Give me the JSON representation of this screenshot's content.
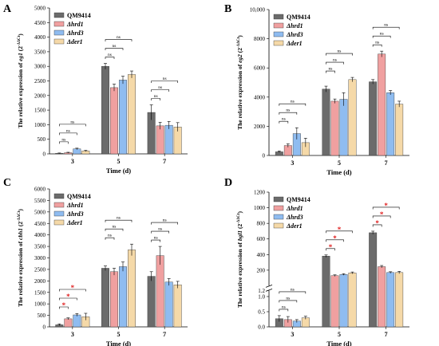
{
  "legend_labels": [
    "QM9414",
    "Δhrd1",
    "Δhrd3",
    "Δder1"
  ],
  "colors": {
    "QM9414": "#6b6b6b",
    "Δhrd1": "#f0a0a0",
    "Δhrd3": "#8fbcf0",
    "Δder1": "#f5d9a8",
    "significant": "#e02020",
    "not_significant": "#000000"
  },
  "chart_data": [
    {
      "panel": "A",
      "type": "bar",
      "ylabel": "The relative expression of eg1 (2^-ΔΔCt)",
      "ylabel_gene": "eg1",
      "xlabel": "Time (d)",
      "categories": [
        "3",
        "5",
        "7"
      ],
      "ylim": [
        0,
        5000
      ],
      "yticks": [
        0,
        500,
        1000,
        1500,
        2000,
        2500,
        3000,
        3500,
        4000,
        4500,
        5000
      ],
      "ytick_labels": [
        "0",
        "500",
        "1000",
        "1500",
        "2000",
        "2500",
        "3000",
        "3500",
        "4000",
        "4500",
        "5000"
      ],
      "series": [
        {
          "name": "QM9414",
          "values": [
            20,
            3000,
            1420
          ],
          "errors": [
            10,
            100,
            260
          ]
        },
        {
          "name": "Δhrd1",
          "values": [
            40,
            2270,
            960
          ],
          "errors": [
            15,
            120,
            120
          ]
        },
        {
          "name": "Δhrd3",
          "values": [
            170,
            2530,
            980
          ],
          "errors": [
            25,
            130,
            130
          ]
        },
        {
          "name": "Δder1",
          "values": [
            100,
            2720,
            920
          ],
          "errors": [
            20,
            120,
            150
          ]
        }
      ],
      "comparisons": [
        {
          "category": 0,
          "target": 1,
          "label": "ns",
          "significant": false
        },
        {
          "category": 0,
          "target": 2,
          "label": "ns",
          "significant": false
        },
        {
          "category": 0,
          "target": 3,
          "label": "ns",
          "significant": false
        },
        {
          "category": 1,
          "target": 1,
          "label": "ns",
          "significant": false
        },
        {
          "category": 1,
          "target": 2,
          "label": "ns",
          "significant": false
        },
        {
          "category": 1,
          "target": 3,
          "label": "ns",
          "significant": false
        },
        {
          "category": 2,
          "target": 1,
          "label": "ns",
          "significant": false
        },
        {
          "category": 2,
          "target": 2,
          "label": "ns",
          "significant": false
        },
        {
          "category": 2,
          "target": 3,
          "label": "ns",
          "significant": false
        }
      ]
    },
    {
      "panel": "B",
      "type": "bar",
      "ylabel": "The relative expression of eg2 (2^-ΔΔCt)",
      "ylabel_gene": "eg2",
      "xlabel": "Time (d)",
      "categories": [
        "3",
        "5",
        "7"
      ],
      "ylim": [
        0,
        10000
      ],
      "yticks": [
        0,
        2000,
        4000,
        6000,
        8000,
        10000
      ],
      "ytick_labels": [
        "0",
        "2000",
        "4000",
        "6000",
        "8000",
        "10,000"
      ],
      "series": [
        {
          "name": "QM9414",
          "values": [
            250,
            4550,
            5050
          ],
          "errors": [
            60,
            200,
            150
          ]
        },
        {
          "name": "Δhrd1",
          "values": [
            680,
            3720,
            6950
          ],
          "errors": [
            120,
            150,
            200
          ]
        },
        {
          "name": "Δhrd3",
          "values": [
            1500,
            3850,
            4300
          ],
          "errors": [
            400,
            450,
            150
          ]
        },
        {
          "name": "Δder1",
          "values": [
            880,
            5200,
            3520
          ],
          "errors": [
            300,
            150,
            200
          ]
        }
      ],
      "comparisons": [
        {
          "category": 0,
          "target": 1,
          "label": "ns",
          "significant": false
        },
        {
          "category": 0,
          "target": 2,
          "label": "ns",
          "significant": false
        },
        {
          "category": 0,
          "target": 3,
          "label": "ns",
          "significant": false
        },
        {
          "category": 1,
          "target": 1,
          "label": "ns",
          "significant": false
        },
        {
          "category": 1,
          "target": 2,
          "label": "ns",
          "significant": false
        },
        {
          "category": 1,
          "target": 3,
          "label": "ns",
          "significant": false
        },
        {
          "category": 2,
          "target": 1,
          "label": "ns",
          "significant": false
        },
        {
          "category": 2,
          "target": 2,
          "label": "ns",
          "significant": false
        },
        {
          "category": 2,
          "target": 3,
          "label": "ns",
          "significant": false
        }
      ]
    },
    {
      "panel": "C",
      "type": "bar",
      "ylabel": "The relative expression of cbh1 (2^-ΔΔCt)",
      "ylabel_gene": "cbh1",
      "xlabel": "Time (d)",
      "categories": [
        "3",
        "5",
        "7"
      ],
      "ylim": [
        0,
        6000
      ],
      "yticks": [
        0,
        500,
        1000,
        1500,
        2000,
        2500,
        3000,
        3500,
        4000,
        4500,
        5000,
        5500,
        6000
      ],
      "ytick_labels": [
        "0",
        "500",
        "1000",
        "1500",
        "2000",
        "2500",
        "3000",
        "3500",
        "4000",
        "4500",
        "5000",
        "5500",
        "6000"
      ],
      "series": [
        {
          "name": "QM9414",
          "values": [
            90,
            2550,
            2200
          ],
          "errors": [
            40,
            100,
            200
          ]
        },
        {
          "name": "Δhrd1",
          "values": [
            350,
            2400,
            3100
          ],
          "errors": [
            40,
            150,
            400
          ]
        },
        {
          "name": "Δhrd3",
          "values": [
            520,
            2620,
            1950
          ],
          "errors": [
            60,
            200,
            150
          ]
        },
        {
          "name": "Δder1",
          "values": [
            440,
            3350,
            1830
          ],
          "errors": [
            150,
            250,
            150
          ]
        }
      ],
      "comparisons": [
        {
          "category": 0,
          "target": 1,
          "label": "*",
          "significant": true
        },
        {
          "category": 0,
          "target": 2,
          "label": "*",
          "significant": true
        },
        {
          "category": 0,
          "target": 3,
          "label": "*",
          "significant": true
        },
        {
          "category": 1,
          "target": 1,
          "label": "ns",
          "significant": false
        },
        {
          "category": 1,
          "target": 2,
          "label": "ns",
          "significant": false
        },
        {
          "category": 1,
          "target": 3,
          "label": "ns",
          "significant": false
        },
        {
          "category": 2,
          "target": 1,
          "label": "ns",
          "significant": false
        },
        {
          "category": 2,
          "target": 2,
          "label": "ns",
          "significant": false
        },
        {
          "category": 2,
          "target": 3,
          "label": "ns",
          "significant": false
        }
      ]
    },
    {
      "panel": "D",
      "type": "bar",
      "ylabel": "The relative expression of bgl1 (2^-ΔΔCt)",
      "ylabel_gene": "bgl1",
      "xlabel": "Time (d)",
      "categories": [
        "3",
        "5",
        "7"
      ],
      "broken_axis": true,
      "ylim_lower": [
        0,
        1.2
      ],
      "ylim_upper": [
        1.2,
        1200
      ],
      "yticks_lower": [
        0,
        0.5,
        1.0
      ],
      "ytick_labels_lower": [
        "0.0",
        "0.5",
        "1.0"
      ],
      "yticks_upper": [
        1.2,
        200,
        400,
        600,
        800,
        1000,
        1200
      ],
      "ytick_labels_upper": [
        "1.2",
        "200",
        "400",
        "600",
        "800",
        "1000",
        "1200"
      ],
      "series": [
        {
          "name": "QM9414",
          "values": [
            0.27,
            380,
            680
          ],
          "errors": [
            0.1,
            15,
            20
          ]
        },
        {
          "name": "Δhrd1",
          "values": [
            0.24,
            130,
            245
          ],
          "errors": [
            0.1,
            10,
            15
          ]
        },
        {
          "name": "Δhrd3",
          "values": [
            0.19,
            145,
            170
          ],
          "errors": [
            0.05,
            10,
            10
          ]
        },
        {
          "name": "Δder1",
          "values": [
            0.3,
            165,
            170
          ],
          "errors": [
            0.05,
            12,
            15
          ]
        }
      ],
      "comparisons": [
        {
          "category": 0,
          "target": 1,
          "label": "ns",
          "significant": false
        },
        {
          "category": 0,
          "target": 2,
          "label": "ns",
          "significant": false
        },
        {
          "category": 0,
          "target": 3,
          "label": "ns",
          "significant": false
        },
        {
          "category": 1,
          "target": 1,
          "label": "*",
          "significant": true
        },
        {
          "category": 1,
          "target": 2,
          "label": "*",
          "significant": true
        },
        {
          "category": 1,
          "target": 3,
          "label": "*",
          "significant": true
        },
        {
          "category": 2,
          "target": 1,
          "label": "*",
          "significant": true
        },
        {
          "category": 2,
          "target": 2,
          "label": "*",
          "significant": true
        },
        {
          "category": 2,
          "target": 3,
          "label": "*",
          "significant": true
        }
      ]
    }
  ]
}
